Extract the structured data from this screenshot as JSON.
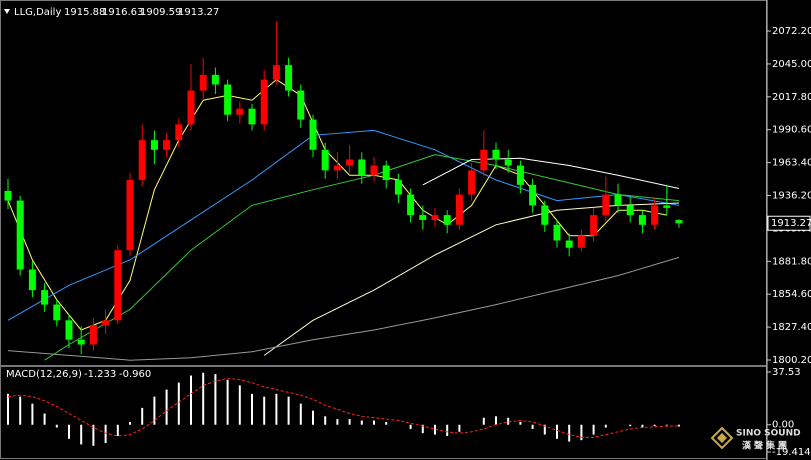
{
  "chart_data": {
    "type": "candlestick",
    "title": "LLG,Daily",
    "up_color": "#ff0000",
    "down_color": "#00ff00",
    "ylim": [
      1796.07,
      2096.2
    ],
    "yticks": [
      {
        "value": 2072.2,
        "label": "2072.20"
      },
      {
        "value": 2045,
        "label": "2045.00"
      },
      {
        "value": 2017.8,
        "label": "2017.80"
      },
      {
        "value": 1990.6,
        "label": "1990.60"
      },
      {
        "value": 1963.4,
        "label": "1963.40"
      },
      {
        "value": 1936.2,
        "label": "1936.20"
      },
      {
        "value": 1909,
        "label": "1909.00"
      },
      {
        "value": 1881.8,
        "label": "1881.80"
      },
      {
        "value": 1854.6,
        "label": "1854.60"
      },
      {
        "value": 1827.4,
        "label": "1827.40"
      },
      {
        "value": 1800.2,
        "label": "1800.20"
      }
    ],
    "candles": [
      [
        1940,
        1950,
        1925,
        1932
      ],
      [
        1932,
        1936,
        1870,
        1875
      ],
      [
        1875,
        1882,
        1852,
        1858
      ],
      [
        1858,
        1864,
        1840,
        1846
      ],
      [
        1846,
        1850,
        1828,
        1833
      ],
      [
        1833,
        1838,
        1810,
        1817
      ],
      [
        1817,
        1828,
        1805,
        1813
      ],
      [
        1813,
        1835,
        1808,
        1829
      ],
      [
        1829,
        1842,
        1822,
        1833
      ],
      [
        1833,
        1895,
        1830,
        1891
      ],
      [
        1891,
        1955,
        1886,
        1949
      ],
      [
        1949,
        1995,
        1944,
        1982
      ],
      [
        1982,
        1990,
        1962,
        1974
      ],
      [
        1974,
        1988,
        1968,
        1982
      ],
      [
        1982,
        2000,
        1976,
        1995
      ],
      [
        1995,
        2045,
        1990,
        2023
      ],
      [
        2023,
        2050,
        2016,
        2036
      ],
      [
        2036,
        2042,
        2020,
        2028
      ],
      [
        2028,
        2032,
        1998,
        2003
      ],
      [
        2003,
        2014,
        1996,
        2008
      ],
      [
        2008,
        2012,
        1990,
        1995
      ],
      [
        1995,
        2040,
        1990,
        2032
      ],
      [
        2032,
        2080,
        2028,
        2044
      ],
      [
        2044,
        2050,
        2018,
        2023
      ],
      [
        2023,
        2028,
        1992,
        1999
      ],
      [
        1999,
        2003,
        1968,
        1974
      ],
      [
        1974,
        1980,
        1950,
        1957
      ],
      [
        1957,
        1972,
        1950,
        1961
      ],
      [
        1961,
        1978,
        1955,
        1966
      ],
      [
        1966,
        1972,
        1946,
        1953
      ],
      [
        1953,
        1968,
        1948,
        1961
      ],
      [
        1961,
        1965,
        1942,
        1949
      ],
      [
        1949,
        1954,
        1930,
        1937
      ],
      [
        1937,
        1942,
        1914,
        1920
      ],
      [
        1920,
        1928,
        1908,
        1916
      ],
      [
        1916,
        1926,
        1910,
        1920
      ],
      [
        1920,
        1924,
        1905,
        1912
      ],
      [
        1912,
        1942,
        1908,
        1937
      ],
      [
        1937,
        1963,
        1932,
        1957
      ],
      [
        1957,
        1990,
        1952,
        1974
      ],
      [
        1974,
        1980,
        1958,
        1966
      ],
      [
        1966,
        1974,
        1955,
        1961
      ],
      [
        1961,
        1965,
        1938,
        1945
      ],
      [
        1945,
        1950,
        1922,
        1928
      ],
      [
        1928,
        1932,
        1906,
        1912
      ],
      [
        1912,
        1916,
        1893,
        1899
      ],
      [
        1899,
        1905,
        1886,
        1893
      ],
      [
        1893,
        1908,
        1890,
        1903
      ],
      [
        1903,
        1926,
        1898,
        1920
      ],
      [
        1920,
        1952,
        1915,
        1937
      ],
      [
        1937,
        1946,
        1922,
        1928
      ],
      [
        1928,
        1935,
        1914,
        1920
      ],
      [
        1920,
        1924,
        1905,
        1912
      ],
      [
        1912,
        1934,
        1908,
        1928
      ],
      [
        1928,
        1945,
        1920,
        1926
      ],
      [
        1915.88,
        1916.63,
        1909.59,
        1913.27
      ]
    ],
    "overlays": [
      {
        "color": "#ffff66",
        "x": [
          0,
          2,
          4,
          6,
          8,
          10,
          12,
          14,
          16,
          18,
          20,
          22,
          24,
          26,
          28,
          30,
          32,
          34,
          36,
          38,
          40,
          42,
          44,
          46,
          48,
          50,
          52,
          54
        ],
        "values": [
          1932,
          1883,
          1850,
          1825,
          1833,
          1866,
          1941,
          1982,
          2015,
          2019,
          2015,
          2032,
          2019,
          1974,
          1953,
          1953,
          1949,
          1924,
          1912,
          1928,
          1961,
          1953,
          1928,
          1903,
          1903,
          1924,
          1924,
          1920
        ]
      },
      {
        "color": "#3399ff",
        "x": [
          0,
          5,
          10,
          15,
          20,
          25,
          30,
          35,
          40,
          45,
          50,
          55
        ],
        "values": [
          1833,
          1862,
          1883,
          1916,
          1949,
          1986,
          1990,
          1974,
          1949,
          1932,
          1937,
          1928
        ]
      },
      {
        "color": "#33cc33",
        "x": [
          3,
          5,
          10,
          15,
          20,
          25,
          30,
          35,
          40,
          45,
          50,
          55
        ],
        "values": [
          1800,
          1813,
          1842,
          1891,
          1928,
          1941,
          1953,
          1970,
          1961,
          1949,
          1937,
          1932
        ]
      },
      {
        "color": "#ffffcc",
        "x": [
          21,
          25,
          30,
          35,
          40,
          45,
          50,
          55
        ],
        "values": [
          1804,
          1833,
          1858,
          1887,
          1912,
          1924,
          1928,
          1930
        ]
      },
      {
        "color": "#ffffff",
        "x": [
          34,
          38,
          42,
          46,
          50,
          55
        ],
        "values": [
          1945,
          1966,
          1967,
          1961,
          1953,
          1942
        ]
      },
      {
        "color": "#999999",
        "x": [
          0,
          5,
          10,
          15,
          20,
          25,
          30,
          35,
          40,
          45,
          50,
          55
        ],
        "values": [
          1808,
          1804,
          1800,
          1802,
          1807,
          1817,
          1825,
          1835,
          1846,
          1858,
          1870,
          1885
        ]
      }
    ],
    "macd": {
      "title": "MACD(12,26,9)",
      "ylim": [
        -23.66,
        41.07
      ],
      "yticks": [
        37.53,
        {
          "value": 0,
          "label": "0.00"
        },
        -19.414
      ],
      "hist": {
        "color": "#ffffff",
        "values": [
          22,
          20,
          15,
          8,
          -2,
          -10,
          -14,
          -15,
          -13,
          -8,
          2,
          12,
          20,
          25,
          30,
          35,
          37,
          36,
          32,
          28,
          22,
          20,
          22,
          20,
          15,
          10,
          6,
          4,
          4,
          3,
          3,
          2,
          0,
          -3,
          -6,
          -7,
          -8,
          -5,
          0,
          5,
          6,
          5,
          2,
          -3,
          -7,
          -10,
          -12,
          -11,
          -7,
          -2,
          0,
          -1,
          -2,
          -1,
          -0.5,
          -1.233
        ]
      },
      "signal": {
        "color": "#ff2222",
        "values": [
          20,
          21,
          20,
          17,
          13,
          8,
          3,
          -2,
          -6,
          -8,
          -7,
          -3,
          3,
          10,
          16,
          22,
          28,
          31,
          33,
          32,
          30,
          27,
          25,
          23,
          21,
          18,
          14,
          11,
          8,
          6,
          5,
          4,
          3,
          1,
          -1,
          -3,
          -5,
          -6,
          -5,
          -3,
          0,
          2,
          3,
          2,
          -1,
          -4,
          -7,
          -9,
          -9,
          -7,
          -5,
          -3,
          -2,
          -1.5,
          -1,
          -0.96
        ],
        "value_labels": [
          null,
          null,
          null,
          null,
          null,
          null,
          null,
          null,
          null,
          null,
          null,
          null,
          null,
          null,
          null,
          null,
          null,
          null,
          null,
          null,
          null,
          null,
          null,
          null,
          null,
          null,
          null,
          null,
          null,
          null,
          null,
          null,
          null,
          null,
          null,
          null,
          null,
          null,
          null,
          null,
          null,
          null,
          null,
          null,
          null,
          null,
          null,
          null,
          null,
          null,
          null,
          null,
          null,
          null,
          null,
          "-0.960"
        ]
      }
    },
    "watermark": {
      "brand": "SINO SOUND",
      "chinese": "漢聲集團"
    }
  }
}
